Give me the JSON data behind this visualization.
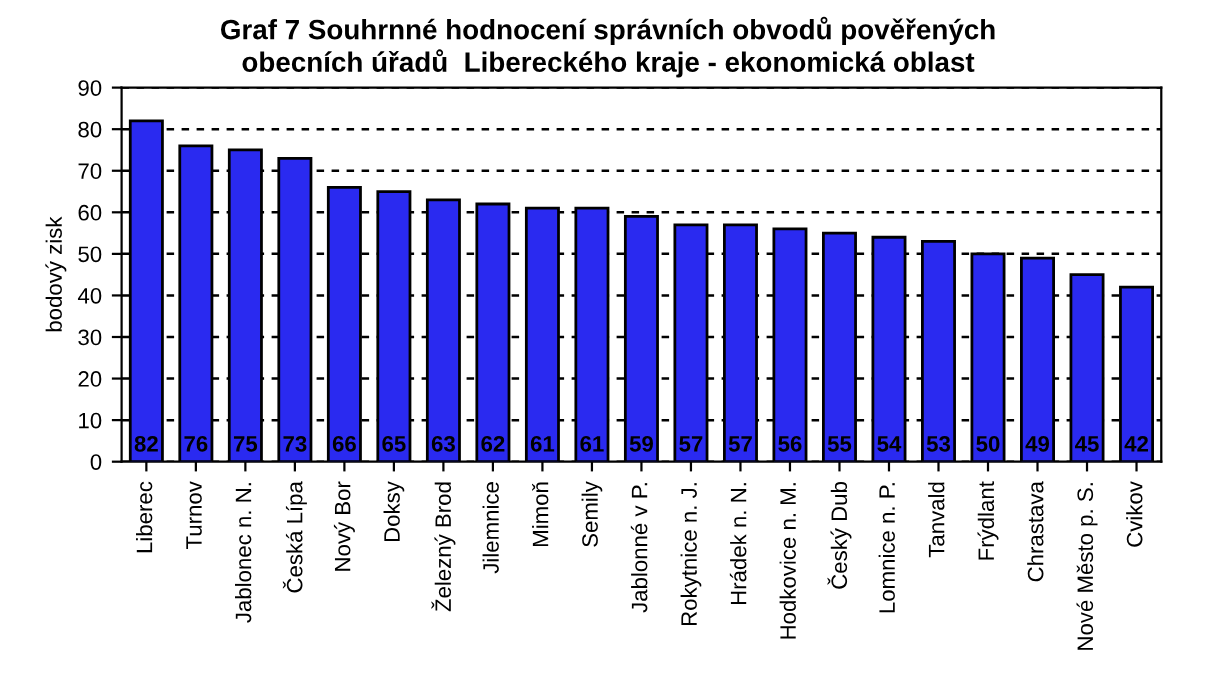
{
  "chart_data": {
    "type": "bar",
    "title": "Graf 7 Souhrnné hodnocení správních obvodů pověřených\nobecních úřadů  Libereckého kraje - ekonomická oblast",
    "ylabel": "bodový zisk",
    "categories": [
      "Liberec",
      "Turnov",
      "Jablonec n. N.",
      "Česká Lípa",
      "Nový Bor",
      "Doksy",
      "Železný Brod",
      "Jilemnice",
      "Mimoň",
      "Semily",
      "Jablonné v P.",
      "Rokytnice n. J.",
      "Hrádek n. N.",
      "Hodkovice n. M.",
      "Český Dub",
      "Lomnice n. P.",
      "Tanvald",
      "Frýdlant",
      "Chrastava",
      "Nové Město p. S.",
      "Cvikov"
    ],
    "values": [
      82,
      76,
      75,
      73,
      66,
      65,
      63,
      62,
      61,
      61,
      59,
      57,
      57,
      56,
      55,
      54,
      53,
      50,
      49,
      45,
      42
    ],
    "color": "#2a2af0",
    "ylim": [
      0,
      90
    ],
    "yticks": [
      0,
      10,
      20,
      30,
      40,
      50,
      60,
      70,
      80,
      90
    ],
    "grid": "y",
    "line_style": "dashed",
    "data_labels": true
  }
}
